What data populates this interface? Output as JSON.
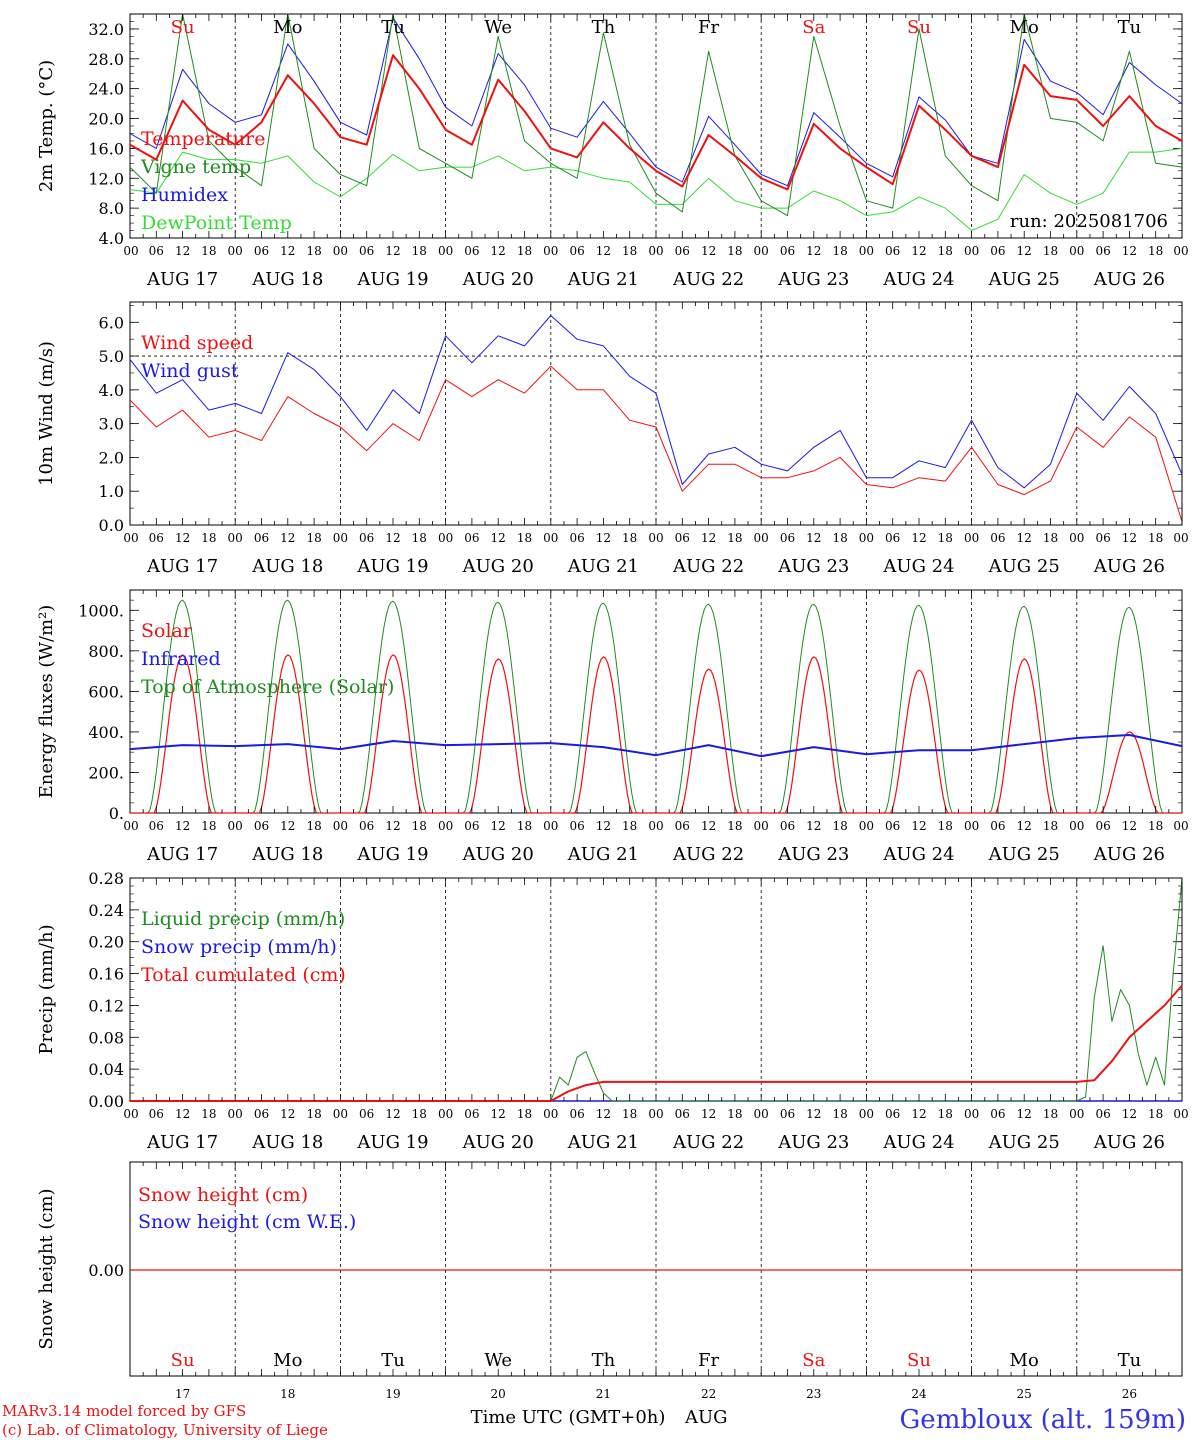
{
  "chart_data": [
    {
      "type": "line",
      "ylabel": "2m Temp. (°C)",
      "ylim": [
        4,
        34
      ],
      "yticks": [
        "4.0",
        "8.0",
        "12.0",
        "16.0",
        "20.0",
        "24.0",
        "28.0",
        "32.0"
      ],
      "grid": "dashed vertical lines at 00 UTC",
      "legend_placement": "left",
      "annotation": "run: 2025081706",
      "day_labels": [
        {
          "text": "Su",
          "color": "#ee1111"
        },
        {
          "text": "Mo",
          "color": "#000000"
        },
        {
          "text": "Tu",
          "color": "#000000"
        },
        {
          "text": "We",
          "color": "#000000"
        },
        {
          "text": "Th",
          "color": "#000000"
        },
        {
          "text": "Fr",
          "color": "#000000"
        },
        {
          "text": "Sa",
          "color": "#ee1111"
        },
        {
          "text": "Su",
          "color": "#ee1111"
        },
        {
          "text": "Mo",
          "color": "#000000"
        },
        {
          "text": "Tu",
          "color": "#000000"
        }
      ],
      "series": [
        {
          "name": "Temperature",
          "color": "#ee1111",
          "width": 2,
          "x": [
            0,
            6,
            12,
            18,
            24,
            30,
            36,
            42,
            48,
            54,
            60,
            66,
            72,
            78,
            84,
            90,
            96,
            102,
            108,
            114,
            120,
            126,
            132,
            138,
            144,
            150,
            156,
            162,
            168,
            174,
            180,
            186,
            192,
            198,
            204,
            210,
            216,
            222,
            228,
            234,
            240
          ],
          "y": [
            16.5,
            14.5,
            22.4,
            18.5,
            16.5,
            19.5,
            25.8,
            22,
            17.5,
            16.5,
            28.5,
            24,
            18.5,
            16.5,
            25.2,
            21,
            16,
            14.8,
            19.5,
            16,
            13,
            10.9,
            17.8,
            15,
            12,
            10.5,
            19.3,
            16,
            13.5,
            11.2,
            21.7,
            18.5,
            15,
            13.5,
            27.2,
            23,
            22.5,
            19,
            23,
            19,
            17
          ]
        },
        {
          "name": "Vigne temp",
          "color": "#1e8c1e",
          "width": 1,
          "x": [
            0,
            6,
            12,
            18,
            24,
            30,
            36,
            42,
            48,
            54,
            60,
            66,
            72,
            78,
            84,
            90,
            96,
            102,
            108,
            114,
            120,
            126,
            132,
            138,
            144,
            150,
            156,
            162,
            168,
            174,
            180,
            186,
            192,
            198,
            204,
            210,
            216,
            222,
            228,
            234,
            240
          ],
          "y": [
            13.5,
            10,
            34,
            17,
            13.5,
            11,
            34,
            16,
            12.5,
            11,
            34,
            16,
            14,
            12,
            31,
            17,
            14,
            12,
            31.5,
            16.5,
            10,
            7.5,
            29,
            15,
            9,
            7,
            31,
            19,
            9,
            8,
            32,
            15,
            11,
            9,
            34,
            20,
            19.5,
            17,
            29,
            14,
            13.5
          ]
        },
        {
          "name": "Humidex",
          "color": "#1a1ae6",
          "width": 1,
          "x": [
            0,
            6,
            12,
            18,
            24,
            30,
            36,
            42,
            48,
            54,
            60,
            66,
            72,
            78,
            84,
            90,
            96,
            102,
            108,
            114,
            120,
            126,
            132,
            138,
            144,
            150,
            156,
            162,
            168,
            174,
            180,
            186,
            192,
            198,
            204,
            210,
            216,
            222,
            228,
            234,
            240
          ],
          "y": [
            18,
            16,
            26.6,
            22,
            19.5,
            20.5,
            30,
            25,
            19.5,
            17.8,
            33.5,
            28,
            21.5,
            19,
            28.7,
            24.5,
            18.7,
            17.5,
            22.3,
            18,
            13.5,
            11.5,
            20.3,
            16.5,
            12.5,
            11,
            20.8,
            17.5,
            14,
            12.2,
            22.9,
            19.8,
            15,
            14,
            30.6,
            25,
            23.5,
            20.5,
            27.5,
            24.5,
            22
          ]
        },
        {
          "name": "DewPoint Temp",
          "color": "#33dd33",
          "width": 1,
          "x": [
            0,
            6,
            12,
            18,
            24,
            30,
            36,
            42,
            48,
            54,
            60,
            66,
            72,
            78,
            84,
            90,
            96,
            102,
            108,
            114,
            120,
            126,
            132,
            138,
            144,
            150,
            156,
            162,
            168,
            174,
            180,
            186,
            192,
            198,
            204,
            210,
            216,
            222,
            228,
            234,
            240
          ],
          "y": [
            10.5,
            10,
            15.5,
            14.5,
            14.5,
            14,
            15,
            11.5,
            9.5,
            12,
            15.2,
            13,
            13.5,
            13.5,
            15,
            13,
            13.5,
            13,
            12,
            11.5,
            8.5,
            8.5,
            12,
            9,
            8,
            8,
            10.3,
            9,
            7,
            7.5,
            9.5,
            8,
            5,
            6.5,
            12.5,
            10,
            8.5,
            10,
            15.5,
            15.5,
            16
          ]
        }
      ]
    },
    {
      "type": "line",
      "ylabel": "10m Wind (m/s)",
      "ylim": [
        0,
        6.6
      ],
      "yticks": [
        "0.0",
        "1.0",
        "2.0",
        "3.0",
        "4.0",
        "5.0",
        "6.0"
      ],
      "hline": 5,
      "legend_placement": "left",
      "series": [
        {
          "name": "Wind speed",
          "color": "#ee1111",
          "width": 1,
          "x": [
            0,
            6,
            12,
            18,
            24,
            30,
            36,
            42,
            48,
            54,
            60,
            66,
            72,
            78,
            84,
            90,
            96,
            102,
            108,
            114,
            120,
            126,
            132,
            138,
            144,
            150,
            156,
            162,
            168,
            174,
            180,
            186,
            192,
            198,
            204,
            210,
            216,
            222,
            228,
            234,
            240
          ],
          "y": [
            3.7,
            2.9,
            3.4,
            2.6,
            2.8,
            2.5,
            3.8,
            3.3,
            2.9,
            2.2,
            3.0,
            2.5,
            4.3,
            3.8,
            4.3,
            3.9,
            4.7,
            4.0,
            4.0,
            3.1,
            2.9,
            1.0,
            1.8,
            1.8,
            1.4,
            1.4,
            1.6,
            2.0,
            1.2,
            1.1,
            1.4,
            1.3,
            2.3,
            1.2,
            0.9,
            1.3,
            2.9,
            2.3,
            3.2,
            2.6,
            0.1
          ]
        },
        {
          "name": "Wind gust",
          "color": "#1a1ae6",
          "width": 1,
          "x": [
            0,
            6,
            12,
            18,
            24,
            30,
            36,
            42,
            48,
            54,
            60,
            66,
            72,
            78,
            84,
            90,
            96,
            102,
            108,
            114,
            120,
            126,
            132,
            138,
            144,
            150,
            156,
            162,
            168,
            174,
            180,
            186,
            192,
            198,
            204,
            210,
            216,
            222,
            228,
            234,
            240
          ],
          "y": [
            4.9,
            3.9,
            4.3,
            3.4,
            3.6,
            3.3,
            5.1,
            4.6,
            3.8,
            2.8,
            4.0,
            3.3,
            5.6,
            4.8,
            5.6,
            5.3,
            6.2,
            5.5,
            5.3,
            4.4,
            3.9,
            1.2,
            2.1,
            2.3,
            1.8,
            1.6,
            2.3,
            2.8,
            1.4,
            1.4,
            1.9,
            1.7,
            3.1,
            1.7,
            1.1,
            1.8,
            3.9,
            3.1,
            4.1,
            3.3,
            1.5
          ]
        }
      ]
    },
    {
      "type": "line",
      "ylabel": "Energy fluxes (W/m²)",
      "ylim": [
        0,
        1100
      ],
      "yticks": [
        "0.",
        "200.",
        "400.",
        "600.",
        "800.",
        "1000."
      ],
      "legend_placement": "left",
      "daily_solar_peaks": [
        780,
        780,
        780,
        760,
        770,
        710,
        770,
        705,
        760,
        400
      ],
      "daily_toa_peaks": [
        1050,
        1050,
        1045,
        1040,
        1035,
        1030,
        1030,
        1025,
        1020,
        1015
      ],
      "infrared": {
        "x": [
          0,
          12,
          24,
          36,
          48,
          60,
          72,
          84,
          96,
          108,
          120,
          132,
          144,
          156,
          168,
          180,
          192,
          204,
          216,
          228,
          240
        ],
        "y": [
          315,
          335,
          330,
          340,
          315,
          355,
          335,
          340,
          345,
          325,
          285,
          335,
          280,
          325,
          290,
          310,
          310,
          340,
          370,
          385,
          330
        ]
      },
      "series": [
        {
          "name": "Solar",
          "color": "#ee1111",
          "width": 1
        },
        {
          "name": "Infrared",
          "color": "#1a1ae6",
          "width": 2
        },
        {
          "name": "Top of Atmosphere (Solar)",
          "color": "#1e8c1e",
          "width": 1
        }
      ]
    },
    {
      "type": "line",
      "ylabel": "Precip (mm/h)",
      "ylim": [
        0,
        0.28
      ],
      "yticks": [
        "0.00",
        "0.04",
        "0.08",
        "0.12",
        "0.16",
        "0.20",
        "0.24",
        "0.28"
      ],
      "legend_placement": "left",
      "series": [
        {
          "name": "Liquid precip (mm/h)",
          "color": "#1e8c1e",
          "width": 1,
          "x": [
            0,
            96,
            98,
            100,
            102,
            104,
            106,
            108,
            110,
            216,
            218,
            220,
            222,
            224,
            226,
            228,
            230,
            232,
            234,
            236,
            238,
            240
          ],
          "y": [
            0,
            0,
            0.03,
            0.02,
            0.055,
            0.062,
            0.035,
            0.01,
            0,
            0,
            0.005,
            0.13,
            0.195,
            0.1,
            0.14,
            0.12,
            0.06,
            0.02,
            0.055,
            0.02,
            0.16,
            0.28
          ]
        },
        {
          "name": "Snow precip (mm/h)",
          "color": "#1a1ae6",
          "width": 1,
          "x": [
            0,
            240
          ],
          "y": [
            0,
            0
          ]
        },
        {
          "name": "Total cumulated (cm)",
          "color": "#ee1111",
          "width": 2,
          "x": [
            0,
            96,
            100,
            104,
            108,
            216,
            220,
            224,
            228,
            232,
            236,
            240
          ],
          "y": [
            0,
            0,
            0.012,
            0.02,
            0.024,
            0.024,
            0.026,
            0.05,
            0.08,
            0.1,
            0.12,
            0.145
          ]
        }
      ]
    },
    {
      "type": "line",
      "ylabel": "Snow height (cm)",
      "yticks": [
        "0.00"
      ],
      "legend_placement": "left",
      "series": [
        {
          "name": "Snow height (cm)",
          "color": "#ee1111",
          "width": 1,
          "x": [
            0,
            240
          ],
          "y": [
            0,
            0
          ]
        },
        {
          "name": "Snow height (cm W.E.)",
          "color": "#1a1ae6",
          "width": 1,
          "x": [
            0,
            240
          ],
          "y": [
            0,
            0
          ]
        }
      ]
    }
  ],
  "x_axis": {
    "hour_ticks": [
      "00",
      "06",
      "12",
      "18"
    ],
    "end_tick": "00",
    "dates": [
      "AUG 17",
      "AUG 18",
      "AUG 19",
      "AUG 20",
      "AUG 21",
      "AUG 22",
      "AUG 23",
      "AUG 24",
      "AUG 25",
      "AUG 26"
    ],
    "day_numbers": [
      "17",
      "18",
      "19",
      "20",
      "21",
      "22",
      "23",
      "24",
      "25",
      "26"
    ],
    "month": "AUG",
    "xlabel": "Time UTC (GMT+0h)"
  },
  "footer": {
    "credit_line1": "MARv3.14 model forced by GFS",
    "credit_line2": "(c) Lab. of Climatology, University of Liege",
    "location": "Gembloux (alt. 159m)"
  }
}
